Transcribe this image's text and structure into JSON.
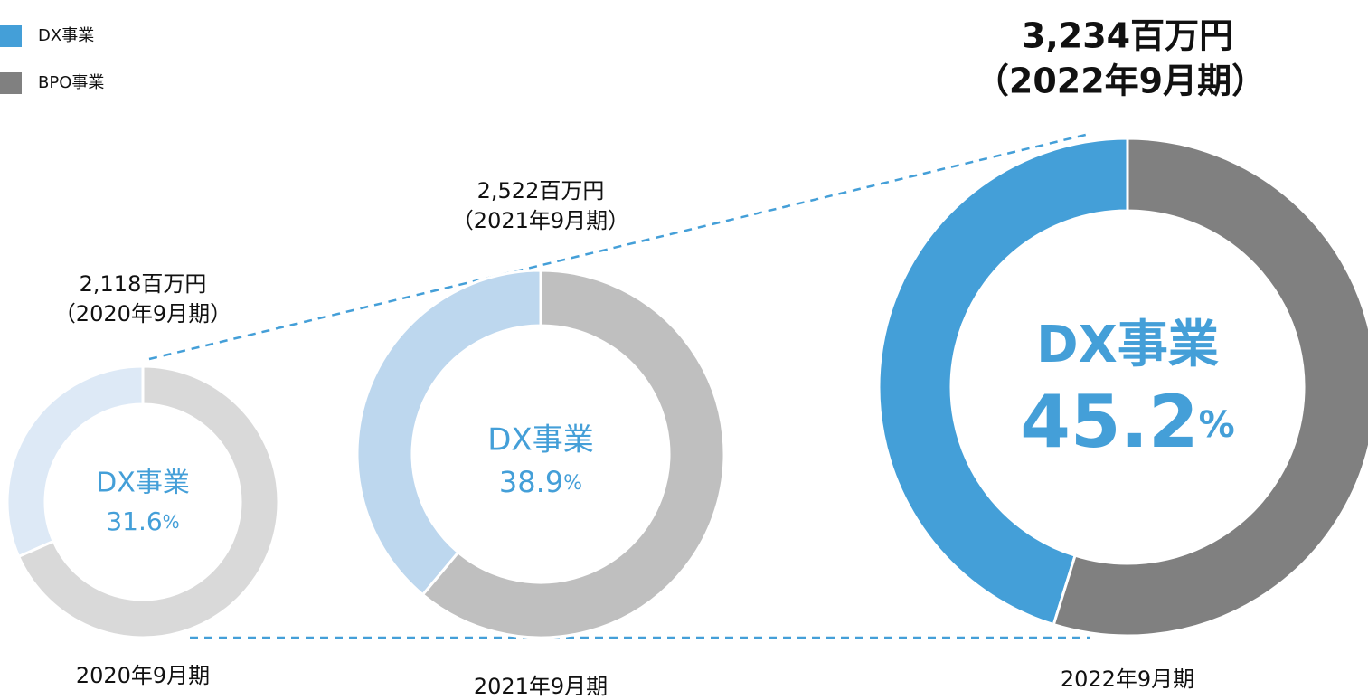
{
  "legend": {
    "items": [
      {
        "name": "DX事業",
        "color": "#449fd8"
      },
      {
        "name": "BPO事業",
        "color": "#808080"
      }
    ]
  },
  "chart_data": [
    {
      "type": "pie",
      "donut": true,
      "categories": [
        "DX事業",
        "BPO事業"
      ],
      "values": [
        31.6,
        68.4
      ],
      "colors": [
        "#dde9f6",
        "#d9d9d9"
      ],
      "total_label": "2,118百万円",
      "period_label": "（2020年9月期）",
      "x_label": "2020年9月期",
      "center_label": "DX事業",
      "unit": "%"
    },
    {
      "type": "pie",
      "donut": true,
      "categories": [
        "DX事業",
        "BPO事業"
      ],
      "values": [
        38.9,
        61.1
      ],
      "colors": [
        "#bdd7ee",
        "#bfbfbf"
      ],
      "total_label": "2,522百万円",
      "period_label": "（2021年9月期）",
      "x_label": "2021年9月期",
      "center_label": "DX事業",
      "unit": "%"
    },
    {
      "type": "pie",
      "donut": true,
      "categories": [
        "DX事業",
        "BPO事業"
      ],
      "values": [
        45.2,
        54.8
      ],
      "colors": [
        "#449fd8",
        "#808080"
      ],
      "total_label": "3,234百万円",
      "period_label": "（2022年9月期）",
      "x_label": "2022年9月期",
      "center_label": "DX事業",
      "unit": "%"
    }
  ]
}
